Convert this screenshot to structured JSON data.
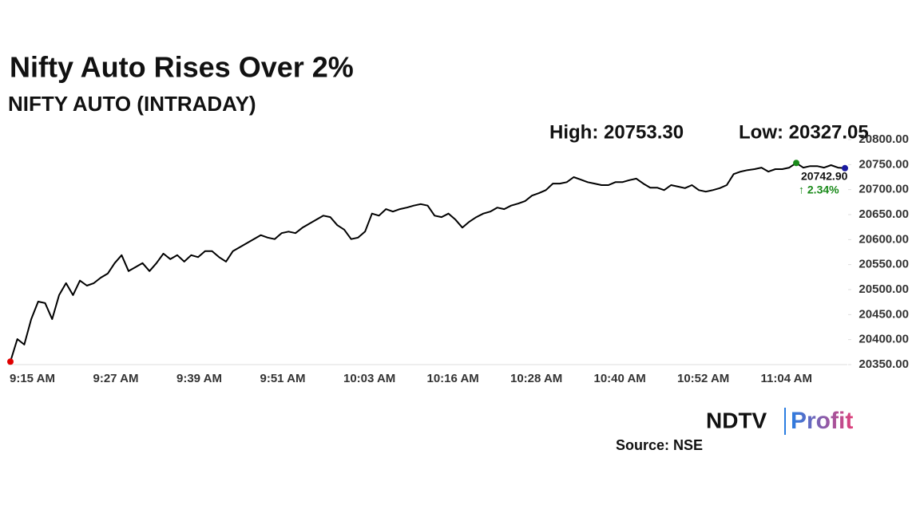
{
  "chart_data": {
    "type": "line",
    "title": "Nifty Auto Rises Over 2%",
    "subtitle": "NIFTY AUTO (INTRADAY)",
    "high_label": "High: 20753.30",
    "low_label": "Low: 20327.05",
    "last_label": "20742.90",
    "change_label": "↑ 2.34%",
    "source": "Source: NSE",
    "logo": [
      "NDTV",
      "Profit"
    ],
    "color": "#000000",
    "start_color": "#e00000",
    "high_color": "#1a8a1a",
    "end_color": "#1a1aa0",
    "change_color": "#1a8a1a",
    "high_index": 113,
    "categories": [
      "9:15 AM",
      null,
      null,
      null,
      null,
      null,
      null,
      null,
      null,
      null,
      null,
      null,
      "9:27 AM",
      null,
      null,
      null,
      null,
      null,
      null,
      null,
      null,
      null,
      null,
      null,
      "9:39 AM",
      null,
      null,
      null,
      null,
      null,
      null,
      null,
      null,
      null,
      null,
      null,
      "9:51 AM",
      null,
      null,
      null,
      null,
      null,
      null,
      null,
      null,
      null,
      null,
      null,
      "10:03 AM",
      null,
      null,
      null,
      null,
      null,
      null,
      null,
      null,
      null,
      null,
      null,
      "10:16 AM",
      null,
      null,
      null,
      null,
      null,
      null,
      null,
      null,
      null,
      null,
      null,
      "10:28 AM",
      null,
      null,
      null,
      null,
      null,
      null,
      null,
      null,
      null,
      null,
      null,
      "10:40 AM",
      null,
      null,
      null,
      null,
      null,
      null,
      null,
      null,
      null,
      null,
      null,
      "10:52 AM",
      null,
      null,
      null,
      null,
      null,
      null,
      null,
      null,
      null,
      null,
      null,
      "11:04 AM",
      null,
      null,
      null,
      null,
      null,
      null,
      null,
      null,
      null,
      null,
      null,
      null
    ],
    "values": [
      20356,
      20401,
      20390,
      20441,
      20476,
      20473,
      20441,
      20489,
      20513,
      20489,
      20518,
      20508,
      20513,
      20524,
      20532,
      20553,
      20569,
      20537,
      20545,
      20553,
      20537,
      20553,
      20572,
      20561,
      20569,
      20556,
      20569,
      20565,
      20577,
      20577,
      20565,
      20556,
      20577,
      20585,
      20593,
      20601,
      20609,
      20604,
      20601,
      20613,
      20616,
      20613,
      20624,
      20632,
      20640,
      20648,
      20645,
      20629,
      20620,
      20601,
      20604,
      20616,
      20652,
      20648,
      20661,
      20656,
      20661,
      20664,
      20668,
      20671,
      20668,
      20648,
      20645,
      20652,
      20640,
      20624,
      20636,
      20645,
      20652,
      20656,
      20664,
      20661,
      20668,
      20672,
      20677,
      20688,
      20693,
      20699,
      20712,
      20712,
      20715,
      20725,
      20720,
      20715,
      20712,
      20709,
      20709,
      20715,
      20715,
      20719,
      20722,
      20712,
      20704,
      20704,
      20699,
      20709,
      20706,
      20703,
      20709,
      20699,
      20696,
      20699,
      20703,
      20709,
      20731,
      20736,
      20739,
      20741,
      20744,
      20736,
      20741,
      20741,
      20744,
      20753.3,
      20744,
      20747,
      20747,
      20744,
      20749,
      20744,
      20742.9
    ],
    "ylim": [
      20350,
      20800
    ],
    "yticks": [
      {
        "value": 20350,
        "label": "20350.00"
      },
      {
        "value": 20400,
        "label": "20400.00"
      },
      {
        "value": 20450,
        "label": "20450.00"
      },
      {
        "value": 20500,
        "label": "20500.00"
      },
      {
        "value": 20550,
        "label": "20550.00"
      },
      {
        "value": 20600,
        "label": "20600.00"
      },
      {
        "value": 20650,
        "label": "20650.00"
      },
      {
        "value": 20700,
        "label": "20700.00"
      },
      {
        "value": 20750,
        "label": "20750.00"
      },
      {
        "value": 20800,
        "label": "20800.00"
      }
    ]
  }
}
